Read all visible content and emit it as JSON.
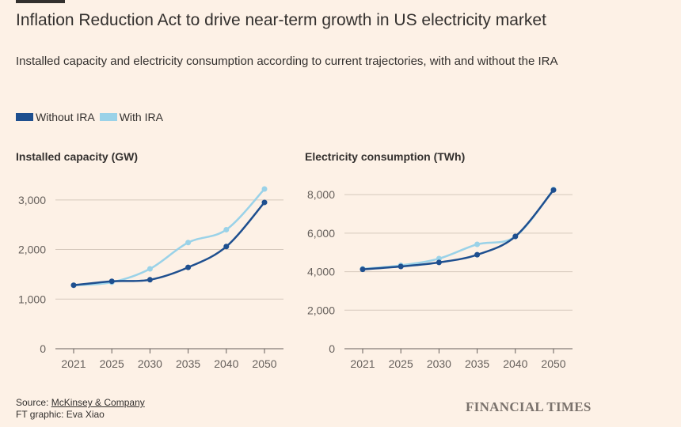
{
  "title": "Inflation Reduction Act to drive near-term growth in US electricity market",
  "subtitle": "Installed capacity and electricity consumption according to current trajectories, with and without the IRA",
  "legend": [
    {
      "label": "Without IRA",
      "color": "#1e4f8f"
    },
    {
      "label": "With IRA",
      "color": "#9ad2e8"
    }
  ],
  "source": {
    "prefix": "Source: ",
    "link_text": "McKinsey & Company",
    "credit": "FT graphic: Eva Xiao"
  },
  "logo_text": "FINANCIAL TIMES",
  "chart_data": [
    {
      "type": "line",
      "title": "Installed capacity (GW)",
      "x": [
        "2021",
        "2025",
        "2030",
        "2035",
        "2040",
        "2050"
      ],
      "ylim": [
        0,
        3300
      ],
      "yticks": [
        0,
        1000,
        2000,
        3000
      ],
      "ytick_labels": [
        "0",
        "1,000",
        "2,000",
        "3,000"
      ],
      "grid": true,
      "series": [
        {
          "name": "Without IRA",
          "color": "#1e4f8f",
          "values": [
            1280,
            1360,
            1390,
            1640,
            2060,
            2950
          ]
        },
        {
          "name": "With IRA",
          "color": "#9ad2e8",
          "values": [
            1280,
            1340,
            1610,
            2140,
            2400,
            3220
          ]
        }
      ]
    },
    {
      "type": "line",
      "title": "Electricity consumption (TWh)",
      "x": [
        "2021",
        "2025",
        "2030",
        "2035",
        "2040",
        "2050"
      ],
      "ylim": [
        0,
        8500
      ],
      "yticks": [
        0,
        2000,
        4000,
        6000,
        8000
      ],
      "ytick_labels": [
        "0",
        "2,000",
        "4,000",
        "6,000",
        "8,000"
      ],
      "grid": true,
      "series": [
        {
          "name": "Without IRA",
          "color": "#1e4f8f",
          "values": [
            4120,
            4270,
            4480,
            4880,
            5830,
            8240
          ]
        },
        {
          "name": "With IRA",
          "color": "#9ad2e8",
          "values": [
            4150,
            4330,
            4680,
            5420,
            5830,
            8270
          ]
        }
      ]
    }
  ]
}
